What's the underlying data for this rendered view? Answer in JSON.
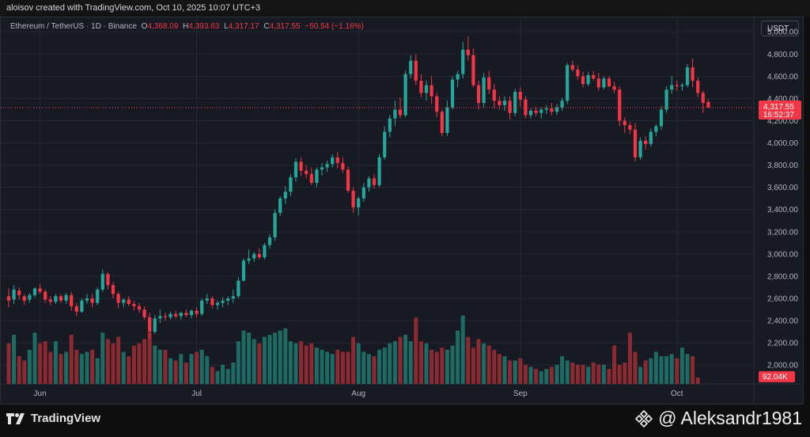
{
  "header": {
    "created_by": "aloisov created with TradingView.com, Oct 10, 2025 10:07 UTC+3"
  },
  "legend": {
    "symbol": "Ethereum / TetherUS · 1D · Binance",
    "o_label": "O",
    "o_value": "4,368.09",
    "h_label": "H",
    "h_value": "4,393.63",
    "l_label": "L",
    "l_value": "4,317.17",
    "c_label": "C",
    "c_value": "4,317.55",
    "change": "−50.54 (−1.16%)"
  },
  "currency_button": "USDT",
  "colors": {
    "up": "#26a69a",
    "down": "#f23645",
    "vol_up": "#1e6b64",
    "vol_down": "#8b2a30",
    "background": "#171a22",
    "grid": "#242832",
    "axis_text": "#b2b5be"
  },
  "footer": {
    "brand": "TradingView",
    "author": "@ Aleksandr1981"
  },
  "chart_data": {
    "type": "candlestick",
    "symbol": "ETH/USDT",
    "interval": "1D",
    "exchange": "Binance",
    "y_ticks": [
      "5,000.00",
      "4,800.00",
      "4,600.00",
      "4,400.00",
      "4,200.00",
      "4,000.00",
      "3,800.00",
      "3,600.00",
      "3,400.00",
      "3,200.00",
      "3,000.00",
      "2,800.00",
      "2,600.00",
      "2,400.00",
      "2,200.00",
      "2,000.00"
    ],
    "y_tick_values": [
      5000,
      4800,
      4600,
      4400,
      4200,
      4000,
      3800,
      3600,
      3400,
      3200,
      3000,
      2800,
      2600,
      2400,
      2200,
      2000
    ],
    "ylim": [
      1830,
      5130
    ],
    "x_labels": [
      {
        "label": "Jun",
        "index": 6
      },
      {
        "label": "Jul",
        "index": 36
      },
      {
        "label": "Aug",
        "index": 67
      },
      {
        "label": "Sep",
        "index": 98
      },
      {
        "label": "Oct",
        "index": 128
      }
    ],
    "last_price_label": "4,317.55",
    "last_price": 4317.55,
    "countdown": "16:52:37",
    "volume_label": "92.04K",
    "ohlc": [
      [
        2620,
        2690,
        2520,
        2580
      ],
      [
        2590,
        2720,
        2550,
        2680
      ],
      [
        2670,
        2700,
        2590,
        2630
      ],
      [
        2620,
        2640,
        2540,
        2580
      ],
      [
        2590,
        2650,
        2560,
        2630
      ],
      [
        2630,
        2700,
        2610,
        2690
      ],
      [
        2690,
        2730,
        2640,
        2660
      ],
      [
        2660,
        2680,
        2560,
        2590
      ],
      [
        2590,
        2620,
        2540,
        2570
      ],
      [
        2570,
        2640,
        2550,
        2620
      ],
      [
        2620,
        2640,
        2560,
        2580
      ],
      [
        2580,
        2650,
        2550,
        2630
      ],
      [
        2630,
        2660,
        2490,
        2530
      ],
      [
        2530,
        2560,
        2440,
        2480
      ],
      [
        2480,
        2600,
        2470,
        2580
      ],
      [
        2580,
        2640,
        2550,
        2600
      ],
      [
        2600,
        2640,
        2520,
        2560
      ],
      [
        2560,
        2700,
        2540,
        2680
      ],
      [
        2680,
        2860,
        2660,
        2820
      ],
      [
        2820,
        2840,
        2680,
        2720
      ],
      [
        2720,
        2750,
        2600,
        2640
      ],
      [
        2640,
        2660,
        2510,
        2560
      ],
      [
        2560,
        2600,
        2520,
        2590
      ],
      [
        2590,
        2620,
        2530,
        2550
      ],
      [
        2550,
        2580,
        2490,
        2530
      ],
      [
        2530,
        2560,
        2470,
        2500
      ],
      [
        2500,
        2530,
        2410,
        2430
      ],
      [
        2430,
        2470,
        2240,
        2300
      ],
      [
        2300,
        2450,
        2280,
        2420
      ],
      [
        2420,
        2500,
        2380,
        2440
      ],
      [
        2440,
        2470,
        2400,
        2430
      ],
      [
        2430,
        2480,
        2410,
        2460
      ],
      [
        2460,
        2490,
        2420,
        2440
      ],
      [
        2440,
        2480,
        2410,
        2470
      ],
      [
        2470,
        2500,
        2430,
        2450
      ],
      [
        2450,
        2500,
        2420,
        2490
      ],
      [
        2490,
        2520,
        2430,
        2460
      ],
      [
        2460,
        2600,
        2440,
        2580
      ],
      [
        2580,
        2640,
        2550,
        2600
      ],
      [
        2600,
        2620,
        2510,
        2540
      ],
      [
        2540,
        2580,
        2500,
        2560
      ],
      [
        2560,
        2610,
        2520,
        2580
      ],
      [
        2580,
        2620,
        2540,
        2600
      ],
      [
        2600,
        2680,
        2560,
        2620
      ],
      [
        2620,
        2790,
        2600,
        2760
      ],
      [
        2760,
        2960,
        2750,
        2940
      ],
      [
        2940,
        3040,
        2910,
        2960
      ],
      [
        2960,
        3020,
        2930,
        3000
      ],
      [
        3000,
        3050,
        2950,
        2970
      ],
      [
        2970,
        3100,
        2950,
        3080
      ],
      [
        3080,
        3180,
        3050,
        3150
      ],
      [
        3150,
        3400,
        3120,
        3370
      ],
      [
        3370,
        3520,
        3340,
        3500
      ],
      [
        3500,
        3610,
        3450,
        3560
      ],
      [
        3560,
        3720,
        3520,
        3690
      ],
      [
        3690,
        3860,
        3650,
        3830
      ],
      [
        3830,
        3870,
        3700,
        3750
      ],
      [
        3750,
        3800,
        3680,
        3720
      ],
      [
        3720,
        3780,
        3620,
        3640
      ],
      [
        3640,
        3780,
        3600,
        3760
      ],
      [
        3760,
        3820,
        3710,
        3780
      ],
      [
        3780,
        3840,
        3740,
        3810
      ],
      [
        3810,
        3900,
        3780,
        3870
      ],
      [
        3870,
        3920,
        3770,
        3820
      ],
      [
        3820,
        3870,
        3730,
        3760
      ],
      [
        3760,
        3790,
        3550,
        3570
      ],
      [
        3570,
        3600,
        3370,
        3420
      ],
      [
        3420,
        3520,
        3350,
        3500
      ],
      [
        3500,
        3640,
        3470,
        3600
      ],
      [
        3600,
        3700,
        3560,
        3680
      ],
      [
        3680,
        3720,
        3590,
        3620
      ],
      [
        3620,
        3900,
        3600,
        3870
      ],
      [
        3870,
        4150,
        3850,
        4100
      ],
      [
        4100,
        4250,
        4050,
        4220
      ],
      [
        4220,
        4380,
        4150,
        4300
      ],
      [
        4300,
        4410,
        4220,
        4250
      ],
      [
        4250,
        4650,
        4230,
        4620
      ],
      [
        4620,
        4790,
        4580,
        4740
      ],
      [
        4740,
        4800,
        4520,
        4560
      ],
      [
        4560,
        4620,
        4410,
        4450
      ],
      [
        4450,
        4560,
        4380,
        4520
      ],
      [
        4520,
        4600,
        4350,
        4420
      ],
      [
        4420,
        4450,
        4230,
        4280
      ],
      [
        4280,
        4300,
        4060,
        4090
      ],
      [
        4090,
        4380,
        4060,
        4320
      ],
      [
        4320,
        4600,
        4300,
        4570
      ],
      [
        4570,
        4650,
        4500,
        4620
      ],
      [
        4620,
        4910,
        4580,
        4840
      ],
      [
        4840,
        4960,
        4740,
        4790
      ],
      [
        4790,
        4850,
        4500,
        4520
      ],
      [
        4520,
        4560,
        4300,
        4360
      ],
      [
        4360,
        4630,
        4320,
        4590
      ],
      [
        4590,
        4650,
        4440,
        4480
      ],
      [
        4480,
        4530,
        4310,
        4380
      ],
      [
        4380,
        4420,
        4300,
        4340
      ],
      [
        4340,
        4420,
        4290,
        4380
      ],
      [
        4380,
        4420,
        4210,
        4270
      ],
      [
        4270,
        4490,
        4240,
        4460
      ],
      [
        4460,
        4500,
        4330,
        4390
      ],
      [
        4390,
        4420,
        4220,
        4250
      ],
      [
        4250,
        4310,
        4220,
        4290
      ],
      [
        4290,
        4320,
        4240,
        4270
      ],
      [
        4270,
        4320,
        4220,
        4300
      ],
      [
        4300,
        4340,
        4260,
        4310
      ],
      [
        4310,
        4360,
        4250,
        4280
      ],
      [
        4280,
        4350,
        4250,
        4320
      ],
      [
        4320,
        4410,
        4290,
        4380
      ],
      [
        4380,
        4720,
        4350,
        4700
      ],
      [
        4700,
        4740,
        4640,
        4660
      ],
      [
        4660,
        4700,
        4570,
        4600
      ],
      [
        4600,
        4640,
        4500,
        4530
      ],
      [
        4530,
        4640,
        4510,
        4610
      ],
      [
        4610,
        4650,
        4560,
        4580
      ],
      [
        4580,
        4630,
        4470,
        4500
      ],
      [
        4500,
        4600,
        4480,
        4580
      ],
      [
        4580,
        4600,
        4500,
        4510
      ],
      [
        4510,
        4550,
        4450,
        4480
      ],
      [
        4480,
        4510,
        4150,
        4200
      ],
      [
        4200,
        4230,
        4090,
        4160
      ],
      [
        4160,
        4190,
        4080,
        4120
      ],
      [
        4120,
        4180,
        3830,
        3870
      ],
      [
        3870,
        4050,
        3850,
        4020
      ],
      [
        4020,
        4060,
        3940,
        3990
      ],
      [
        3990,
        4130,
        3970,
        4100
      ],
      [
        4100,
        4170,
        4060,
        4150
      ],
      [
        4150,
        4330,
        4120,
        4300
      ],
      [
        4300,
        4510,
        4270,
        4480
      ],
      [
        4480,
        4600,
        4440,
        4520
      ],
      [
        4520,
        4560,
        4470,
        4510
      ],
      [
        4510,
        4540,
        4470,
        4520
      ],
      [
        4520,
        4710,
        4500,
        4680
      ],
      [
        4680,
        4760,
        4500,
        4560
      ],
      [
        4560,
        4590,
        4410,
        4450
      ],
      [
        4450,
        4470,
        4270,
        4360
      ],
      [
        4368.09,
        4393.63,
        4317.17,
        4317.55
      ]
    ],
    "volume": [
      1.9,
      2.3,
      1.3,
      1.1,
      1.6,
      2.4,
      1.9,
      2.0,
      1.5,
      2.0,
      1.4,
      1.5,
      2.3,
      1.6,
      1.4,
      1.5,
      1.6,
      1.2,
      2.4,
      2.1,
      1.9,
      2.2,
      1.5,
      1.3,
      1.8,
      1.9,
      2.1,
      2.4,
      1.8,
      1.6,
      1.6,
      1.2,
      1.1,
      1.4,
      1.0,
      1.4,
      1.5,
      1.6,
      1.3,
      0.8,
      0.6,
      0.9,
      0.7,
      1.0,
      2.0,
      2.5,
      2.4,
      2.1,
      1.9,
      2.2,
      2.3,
      2.4,
      2.5,
      2.6,
      2.0,
      1.9,
      2.0,
      1.8,
      1.9,
      1.7,
      1.6,
      1.5,
      1.4,
      1.6,
      1.5,
      1.5,
      2.2,
      1.9,
      1.5,
      1.4,
      1.3,
      1.6,
      1.7,
      1.9,
      2.0,
      2.2,
      2.3,
      2.0,
      3.1,
      2.0,
      1.9,
      1.6,
      1.5,
      1.7,
      1.6,
      1.8,
      2.5,
      3.2,
      2.2,
      1.7,
      2.1,
      1.9,
      1.8,
      1.6,
      1.4,
      1.3,
      1.1,
      1.1,
      1.2,
      0.9,
      0.8,
      0.7,
      0.6,
      0.7,
      0.8,
      0.9,
      1.3,
      1.1,
      1.0,
      0.9,
      0.9,
      0.8,
      1.0,
      0.9,
      0.9,
      0.7,
      1.8,
      0.9,
      1.0,
      2.4,
      1.5,
      0.8,
      1.1,
      1.2,
      1.5,
      1.3,
      1.3,
      1.4,
      1.2,
      1.7,
      1.4,
      1.3,
      0.3
    ],
    "volume_ylim": [
      0,
      4.0
    ]
  }
}
